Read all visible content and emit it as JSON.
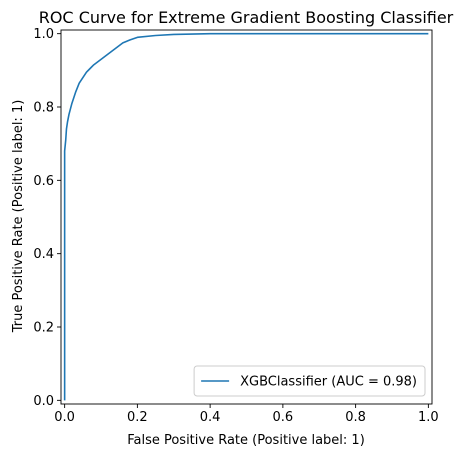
{
  "chart_data": {
    "type": "line",
    "title": "ROC Curve for Extreme Gradient Boosting Classifier",
    "xlabel": "False Positive Rate (Positive label: 1)",
    "ylabel": "True Positive Rate (Positive label: 1)",
    "xlim": [
      -0.01,
      1.01
    ],
    "ylim": [
      -0.01,
      1.01
    ],
    "xticks": [
      0.0,
      0.2,
      0.4,
      0.6,
      0.8,
      1.0
    ],
    "yticks": [
      0.0,
      0.2,
      0.4,
      0.6,
      0.8,
      1.0
    ],
    "xtick_labels": [
      "0.0",
      "0.2",
      "0.4",
      "0.6",
      "0.8",
      "1.0"
    ],
    "ytick_labels": [
      "0.0",
      "0.2",
      "0.4",
      "0.6",
      "0.8",
      "1.0"
    ],
    "grid": false,
    "legend_position": "bottom-right",
    "series": [
      {
        "name": "XGBClassifier (AUC = 0.98)",
        "color": "#1f77b4",
        "x": [
          0.0,
          0.0,
          0.003,
          0.005,
          0.008,
          0.012,
          0.02,
          0.03,
          0.04,
          0.05,
          0.06,
          0.07,
          0.08,
          0.1,
          0.12,
          0.14,
          0.16,
          0.18,
          0.2,
          0.25,
          0.3,
          0.35,
          0.4,
          0.5,
          0.6,
          0.7,
          0.8,
          0.9,
          1.0
        ],
        "y": [
          0.0,
          0.68,
          0.71,
          0.74,
          0.76,
          0.78,
          0.81,
          0.84,
          0.865,
          0.88,
          0.895,
          0.905,
          0.915,
          0.93,
          0.945,
          0.96,
          0.975,
          0.983,
          0.99,
          0.995,
          0.998,
          0.999,
          1.0,
          1.0,
          1.0,
          1.0,
          1.0,
          1.0,
          1.0
        ]
      }
    ]
  }
}
